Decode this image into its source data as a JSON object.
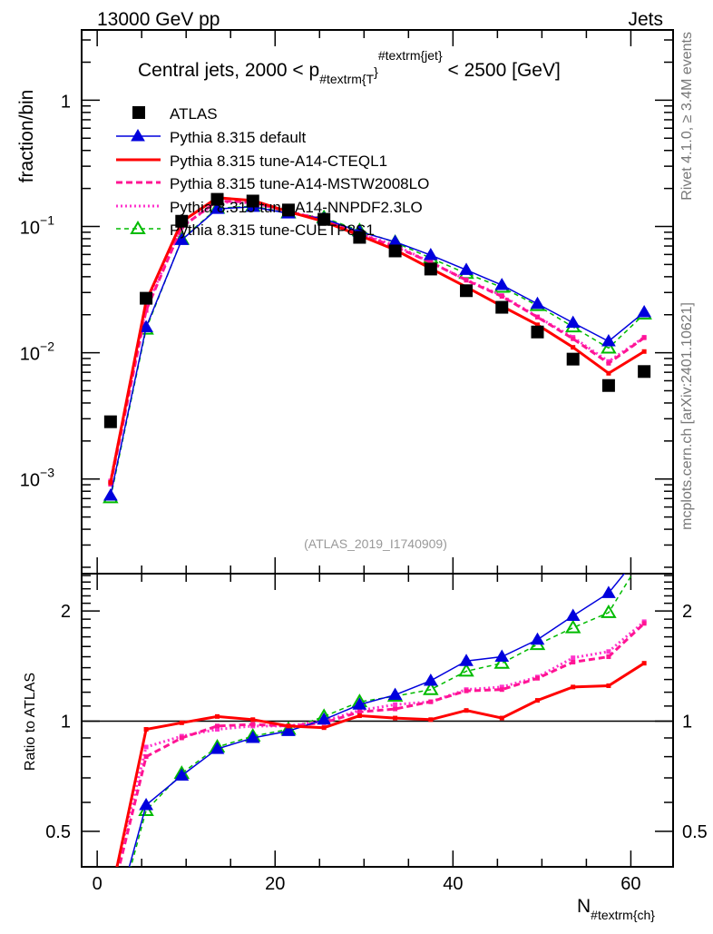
{
  "header": {
    "left": "13000 GeV pp",
    "right": "Jets"
  },
  "side_labels": {
    "rivet": "Rivet 4.1.0, ≥ 3.4M events",
    "mcplots": "mcplots.cern.ch [arXiv:2401.10621]"
  },
  "chart_data": {
    "type": "line",
    "title_parts": {
      "main": "Central jets, 2000 < p",
      "sub": "#textrm{T",
      "close1": "}",
      "sup": "#textrm{jet",
      "close2": "}",
      "tail": " < 2500 [GeV]"
    },
    "ylabel": "fraction/bin",
    "ratio_ylabel": "Ratio to ATLAS",
    "xlabel_main": "N",
    "xlabel_sub": "#textrm{ch}",
    "analysis_id": "(ATLAS_2019_I1740909)",
    "yscale": "log",
    "ylim": [
      0.000178,
      3.6
    ],
    "xlim": [
      -1.75,
      64.75
    ],
    "ratio_ylim": [
      0.4,
      2.53
    ],
    "x_ticks": [
      "0",
      "20",
      "40",
      "60"
    ],
    "y_ticks": [
      "10^-3",
      "10^-2",
      "10^-1",
      "1"
    ],
    "y_tick_labels": [
      {
        "base": "10",
        "exp": "−3"
      },
      {
        "base": "10",
        "exp": "−2"
      },
      {
        "base": "10",
        "exp": "−1"
      },
      {
        "base": "1",
        "exp": ""
      }
    ],
    "ratio_ticks": [
      "0.5",
      "1",
      "2"
    ],
    "x": [
      1.5,
      5.5,
      9.5,
      13.5,
      17.5,
      21.5,
      25.5,
      29.5,
      33.5,
      37.5,
      41.5,
      45.5,
      49.5,
      53.5,
      57.5,
      61.5
    ],
    "data": {
      "name": "ATLAS",
      "values": [
        0.00284,
        0.027,
        0.11,
        0.164,
        0.159,
        0.135,
        0.114,
        0.082,
        0.064,
        0.046,
        0.031,
        0.0229,
        0.0146,
        0.0089,
        0.0055,
        0.0071
      ]
    },
    "series": [
      {
        "name": "Pythia 8.315 default",
        "color": "#0000dd",
        "style": "solid-filled-triangle",
        "ratio": [
          0.26,
          0.59,
          0.71,
          0.84,
          0.9,
          0.94,
          1.01,
          1.11,
          1.18,
          1.29,
          1.46,
          1.5,
          1.67,
          1.94,
          2.24,
          2.95
        ]
      },
      {
        "name": "Pythia 8.315 tune-A14-CTEQL1",
        "color": "#ff0000",
        "style": "thick-solid",
        "ratio": [
          0.33,
          0.95,
          0.99,
          1.03,
          1.01,
          0.97,
          0.96,
          1.035,
          1.02,
          1.01,
          1.07,
          1.02,
          1.14,
          1.24,
          1.25,
          1.44
        ]
      },
      {
        "name": "Pythia 8.315 tune-A14-MSTW2008LO",
        "color": "#ff1493",
        "style": "thick-dashed",
        "ratio": [
          0.32,
          0.8,
          0.9,
          0.97,
          0.98,
          0.97,
          0.99,
          1.06,
          1.08,
          1.13,
          1.21,
          1.22,
          1.31,
          1.45,
          1.5,
          1.85
        ]
      },
      {
        "name": "Pythia 8.315 tune-A14-NNPDF2.3LO",
        "color": "#ff33cc",
        "style": "dotted",
        "ratio": [
          0.34,
          0.85,
          0.91,
          0.95,
          0.97,
          0.97,
          1.0,
          1.07,
          1.11,
          1.13,
          1.22,
          1.24,
          1.32,
          1.49,
          1.55,
          1.87
        ]
      },
      {
        "name": "Pythia 8.315 tune-CUETP8S1",
        "color": "#00bb00",
        "style": "dashed-open-triangle",
        "ratio": [
          0.25,
          0.57,
          0.72,
          0.85,
          0.91,
          0.95,
          1.03,
          1.13,
          1.17,
          1.22,
          1.37,
          1.44,
          1.62,
          1.8,
          1.98,
          2.85
        ]
      }
    ],
    "legend_placement": "top-left",
    "grid": false
  }
}
